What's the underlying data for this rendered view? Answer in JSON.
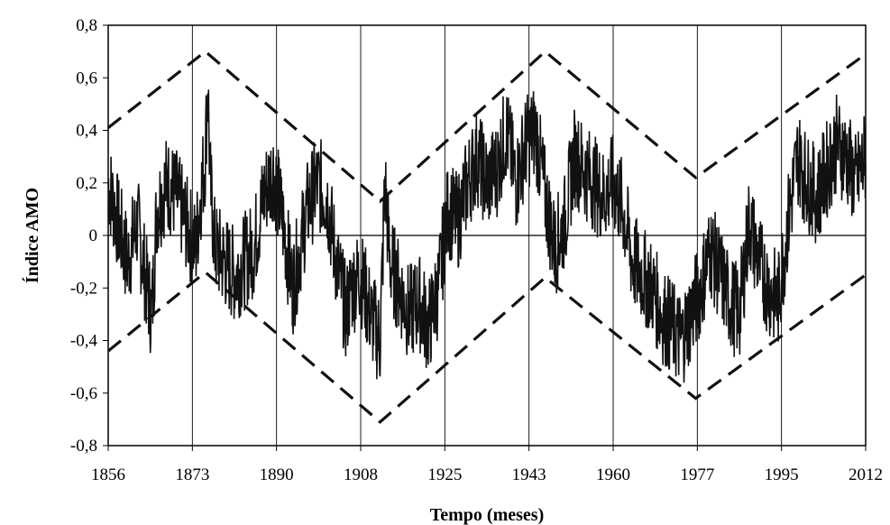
{
  "chart_data": {
    "type": "line",
    "title": "",
    "xlabel": "Tempo (meses)",
    "ylabel": "Índice AMO",
    "x_tick_labels": [
      "1856",
      "1873",
      "1890",
      "1908",
      "1925",
      "1943",
      "1960",
      "1977",
      "1995",
      "2012"
    ],
    "y_tick_labels": [
      "0,8",
      "0,6",
      "0,4",
      "0,2",
      "0",
      "-0,2",
      "-0,4",
      "-0,6",
      "-0,8"
    ],
    "y_tick_values": [
      0.8,
      0.6,
      0.4,
      0.2,
      0,
      -0.2,
      -0.4,
      -0.6,
      -0.8
    ],
    "xlim": [
      1856,
      2012
    ],
    "ylim": [
      -0.8,
      0.8
    ],
    "grid": "vertical lines at x tick positions",
    "legend": "none",
    "colors": {
      "series": "#000000",
      "envelope": "#000000",
      "grid": "#000000",
      "background": "#ffffff"
    },
    "series": [
      {
        "values_monthly_smoothed_trace": [
          [
            1856,
            0.2
          ],
          [
            1858,
            0.05
          ],
          [
            1860,
            -0.1
          ],
          [
            1862,
            0.05
          ],
          [
            1864,
            -0.2
          ],
          [
            1865,
            -0.3
          ],
          [
            1866,
            0.1
          ],
          [
            1868,
            0.2
          ],
          [
            1870,
            0.15
          ],
          [
            1872,
            0.05
          ],
          [
            1874,
            -0.05
          ],
          [
            1875,
            0.15
          ],
          [
            1876,
            0.3
          ],
          [
            1876.5,
            0.6
          ],
          [
            1877,
            0.2
          ],
          [
            1878,
            -0.05
          ],
          [
            1880,
            -0.1
          ],
          [
            1882,
            -0.15
          ],
          [
            1884,
            -0.1
          ],
          [
            1886,
            -0.05
          ],
          [
            1888,
            0.15
          ],
          [
            1890,
            0.25
          ],
          [
            1892,
            0.05
          ],
          [
            1894,
            -0.2
          ],
          [
            1895,
            -0.1
          ],
          [
            1897,
            0.1
          ],
          [
            1899,
            0.2
          ],
          [
            1901,
            0.15
          ],
          [
            1903,
            -0.1
          ],
          [
            1905,
            -0.3
          ],
          [
            1906,
            -0.2
          ],
          [
            1908,
            -0.15
          ],
          [
            1910,
            -0.3
          ],
          [
            1912,
            -0.4
          ],
          [
            1913,
            0.2
          ],
          [
            1914,
            -0.1
          ],
          [
            1916,
            -0.2
          ],
          [
            1918,
            -0.3
          ],
          [
            1920,
            -0.25
          ],
          [
            1922,
            -0.35
          ],
          [
            1924,
            -0.2
          ],
          [
            1926,
            0.1
          ],
          [
            1928,
            0.05
          ],
          [
            1930,
            0.2
          ],
          [
            1932,
            0.3
          ],
          [
            1934,
            0.2
          ],
          [
            1936,
            0.25
          ],
          [
            1938,
            0.4
          ],
          [
            1940,
            0.2
          ],
          [
            1942,
            0.35
          ],
          [
            1944,
            0.4
          ],
          [
            1946,
            0.15
          ],
          [
            1948,
            -0.05
          ],
          [
            1950,
            0.05
          ],
          [
            1952,
            0.3
          ],
          [
            1954,
            0.25
          ],
          [
            1956,
            0.2
          ],
          [
            1958,
            0.15
          ],
          [
            1960,
            0.2
          ],
          [
            1962,
            0.1
          ],
          [
            1964,
            -0.1
          ],
          [
            1966,
            -0.15
          ],
          [
            1968,
            -0.2
          ],
          [
            1970,
            -0.3
          ],
          [
            1972,
            -0.35
          ],
          [
            1974,
            -0.4
          ],
          [
            1976,
            -0.3
          ],
          [
            1978,
            -0.2
          ],
          [
            1980,
            -0.05
          ],
          [
            1982,
            -0.15
          ],
          [
            1984,
            -0.25
          ],
          [
            1986,
            -0.3
          ],
          [
            1988,
            0.05
          ],
          [
            1990,
            -0.1
          ],
          [
            1992,
            -0.2
          ],
          [
            1994,
            -0.25
          ],
          [
            1996,
            0.05
          ],
          [
            1998,
            0.3
          ],
          [
            2000,
            0.2
          ],
          [
            2002,
            0.15
          ],
          [
            2004,
            0.25
          ],
          [
            2006,
            0.35
          ],
          [
            2008,
            0.3
          ],
          [
            2010,
            0.2
          ],
          [
            2012,
            0.3
          ]
        ]
      }
    ],
    "envelope_upper": [
      [
        1856,
        0.41
      ],
      [
        1876,
        0.7
      ],
      [
        1912,
        0.13
      ],
      [
        1946,
        0.7
      ],
      [
        1977,
        0.22
      ],
      [
        2012,
        0.69
      ]
    ],
    "envelope_lower": [
      [
        1856,
        -0.44
      ],
      [
        1876,
        -0.14
      ],
      [
        1912,
        -0.71
      ],
      [
        1946,
        -0.16
      ],
      [
        1977,
        -0.62
      ],
      [
        2012,
        -0.15
      ]
    ]
  }
}
